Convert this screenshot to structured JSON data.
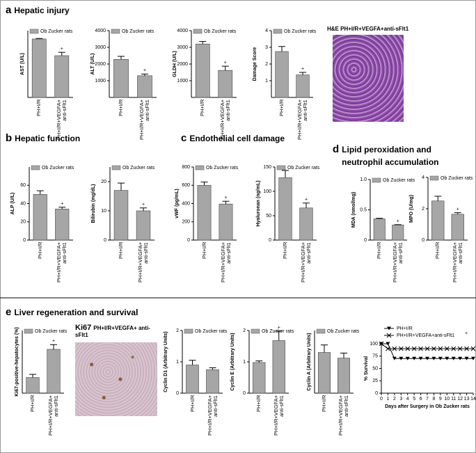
{
  "panels": [
    {
      "letter": "a",
      "title": "Hepatic injury"
    },
    {
      "letter": "b",
      "title": "Hepatic function"
    },
    {
      "letter": "c",
      "title": "Endothelial cell damage"
    },
    {
      "letter": "d",
      "title": "Lipid peroxidation and neutrophil accumulation"
    },
    {
      "letter": "e",
      "title": "Liver regeneration and survival"
    }
  ],
  "images": [
    {
      "caption": "H&E PH+I/R+VEGFA+anti-sFlt1"
    },
    {
      "label": "Ki67",
      "caption": "PH+I/R+VEGFA+ anti-sFlt1"
    }
  ],
  "chart_data": [
    {
      "type": "bar",
      "ylabel": "AST (U/L)",
      "categories": [
        "PH+I/R",
        "PH+I/R+VEGFA+ anti-sFlt1"
      ],
      "series": [
        {
          "name": "Ob Zucker rats",
          "color": "#a6a6a6",
          "values": [
            3500,
            2500
          ],
          "errors": [
            30,
            200
          ]
        }
      ],
      "value_markers": [
        null,
        "+"
      ],
      "ylim": [
        0,
        4000
      ]
    },
    {
      "type": "bar",
      "ylabel": "ALT (U/L)",
      "categories": [
        "PH+I/R",
        "PH+I/R+VEGFA+ anti-sFlt1"
      ],
      "series": [
        {
          "name": "Ob Zucker rats",
          "color": "#a6a6a6",
          "values": [
            2280,
            1300
          ],
          "errors": [
            180,
            100
          ]
        }
      ],
      "value_markers": [
        null,
        "+"
      ],
      "ylim": [
        0,
        4000
      ],
      "yticks": [
        1000,
        2000,
        3000,
        4000
      ]
    },
    {
      "type": "bar",
      "ylabel": "GLDH (U/L)",
      "categories": [
        "PH+I/R",
        "PH+I/R+VEGFA+ anti-sFlt1"
      ],
      "series": [
        {
          "name": "Ob Zucker rats",
          "color": "#a6a6a6",
          "values": [
            3200,
            1620
          ],
          "errors": [
            150,
            250
          ]
        }
      ],
      "value_markers": [
        null,
        "+"
      ],
      "ylim": [
        0,
        4000
      ],
      "yticks": [
        1000,
        2000,
        3000,
        4000
      ]
    },
    {
      "type": "bar",
      "ylabel": "Damage Score",
      "categories": [
        "PH+I/R",
        "PH+I/R+VEGFA+ anti-sFlt1"
      ],
      "series": [
        {
          "name": "Ob Zucker rats",
          "color": "#a6a6a6",
          "values": [
            2.75,
            1.35
          ],
          "errors": [
            0.3,
            0.15
          ]
        }
      ],
      "value_markers": [
        null,
        "+"
      ],
      "ylim": [
        0,
        4
      ],
      "yticks": [
        1,
        2,
        3,
        4
      ]
    },
    {
      "type": "bar",
      "ylabel": "ALP (U/L)",
      "categories": [
        "PH+I/R",
        "PH+I/R+VEGFA+ anti-sFlt1"
      ],
      "series": [
        {
          "name": "Ob Zucker rats",
          "color": "#a6a6a6",
          "values": [
            50,
            34
          ],
          "errors": [
            4,
            2
          ]
        }
      ],
      "value_markers": [
        null,
        "+"
      ],
      "ylim": [
        0,
        80
      ],
      "yticks": [
        0,
        20,
        40,
        60
      ]
    },
    {
      "type": "bar",
      "ylabel": "Bilirubin (mg/dL)",
      "categories": [
        "PH+I/R",
        "PH+I/R+VEGFA+ anti-sFlt1"
      ],
      "series": [
        {
          "name": "Ob Zucker rats",
          "color": "#a6a6a6",
          "values": [
            17,
            10
          ],
          "errors": [
            2.5,
            1
          ]
        }
      ],
      "value_markers": [
        null,
        "+"
      ],
      "ylim": [
        0,
        25
      ],
      "yticks": [
        0,
        10,
        20
      ]
    },
    {
      "type": "bar",
      "ylabel": "vWF (pg/mL)",
      "categories": [
        "PH+I/R",
        "PH+I/R+VEGFA+ anti-sFlt1"
      ],
      "series": [
        {
          "name": "Ob Zucker rats",
          "color": "#a6a6a6",
          "values": [
            600,
            395
          ],
          "errors": [
            35,
            30
          ]
        }
      ],
      "value_markers": [
        null,
        "+"
      ],
      "ylim": [
        0,
        800
      ],
      "yticks": [
        0,
        200,
        400,
        600,
        800
      ]
    },
    {
      "type": "bar",
      "ylabel": "Hyaluronan (ng/mL)",
      "categories": [
        "PH+I/R",
        "PH+I/R+VEGFA+ anti-sFlt1"
      ],
      "series": [
        {
          "name": "Ob Zucker rats",
          "color": "#a6a6a6",
          "values": [
            128,
            66
          ],
          "errors": [
            15,
            10
          ]
        }
      ],
      "value_markers": [
        null,
        "+"
      ],
      "ylim": [
        0,
        150
      ],
      "yticks": [
        0,
        50,
        100,
        150
      ]
    },
    {
      "type": "bar",
      "ylabel": "MDA (nmol/mg)",
      "categories": [
        "PH+I/R",
        "PH+I/R+VEGFA+ anti-sFlt1"
      ],
      "series": [
        {
          "name": "Ob Zucker rats",
          "color": "#a6a6a6",
          "values": [
            0.35,
            0.25
          ],
          "errors": [
            0.01,
            0.005
          ]
        }
      ],
      "value_markers": [
        null,
        "+"
      ],
      "ylim": [
        0,
        1
      ],
      "yticks": [
        0,
        0.5,
        {
          "value": 1,
          "label": "1.0"
        }
      ]
    },
    {
      "type": "bar",
      "ylabel": "MPO (U/mg)",
      "categories": [
        "PH+I/R",
        "PH+I/R+VEGFA+ anti-sFlt1"
      ],
      "series": [
        {
          "name": "Ob Zucker rats",
          "color": "#a6a6a6",
          "values": [
            2.5,
            1.65
          ],
          "errors": [
            0.3,
            0.1
          ]
        }
      ],
      "value_markers": [
        null,
        "+"
      ],
      "ylim": [
        0,
        4
      ],
      "yticks": [
        0,
        2,
        4
      ]
    },
    {
      "type": "bar",
      "ylabel": "Ki67-positive-hepatocytes (%)",
      "categories": [
        "PH+I/R",
        "PH+I/R+VEGFA+ anti-sFlt1"
      ],
      "series": [
        {
          "name": "Ob Zucker rats",
          "color": "#a6a6a6",
          "values": [
            10,
            28
          ],
          "errors": [
            2,
            3
          ]
        }
      ],
      "value_markers": [
        null,
        "+"
      ],
      "ylim": [
        0,
        40
      ]
    },
    {
      "type": "bar",
      "ylabel": "Cyclin D1 (Arbitrary Units)",
      "categories": [
        "PH+I/R",
        "PH+I/R+VEGFA+ anti-sFlt1"
      ],
      "series": [
        {
          "name": "Ob Zucker rats",
          "color": "#a6a6a6",
          "values": [
            0.9,
            0.75
          ],
          "errors": [
            0.15,
            0.06
          ]
        }
      ],
      "value_markers": [
        null,
        null
      ],
      "ylim": [
        0,
        2
      ],
      "yticks": [
        0,
        1,
        2
      ]
    },
    {
      "type": "bar",
      "ylabel": "Cyclin E (Arbitrary Units)",
      "categories": [
        "PH+I/R",
        "PH+I/R+VEGFA+ anti-sFlt1"
      ],
      "series": [
        {
          "name": "Ob Zucker rats",
          "color": "#a6a6a6",
          "values": [
            0.98,
            1.68
          ],
          "errors": [
            0.05,
            0.3
          ]
        }
      ],
      "value_markers": [
        null,
        "+"
      ],
      "ylim": [
        0,
        2
      ],
      "yticks": [
        0,
        1,
        2
      ]
    },
    {
      "type": "bar",
      "ylabel": "Cyclin A (Arbitrary Units)",
      "categories": [
        "PH+I/R",
        "PH+I/R+VEGFA+ anti-sFlt1"
      ],
      "series": [
        {
          "name": "Ob Zucker rats",
          "color": "#a6a6a6",
          "values": [
            0.65,
            0.56
          ],
          "errors": [
            0.12,
            0.08
          ]
        }
      ],
      "value_markers": [
        null,
        null
      ],
      "ylim": [
        0,
        1
      ]
    },
    {
      "type": "line",
      "ylabel": "% Survival",
      "xlabel": "Days after Surgery in Ob Zucker rats",
      "x": [
        0,
        1,
        2,
        3,
        4,
        5,
        6,
        7,
        8,
        9,
        10,
        11,
        12,
        13,
        14
      ],
      "series": [
        {
          "name": "PH+I/R",
          "color": "#000000",
          "marker": "triangle",
          "values": [
            100,
            100,
            70,
            70,
            70,
            70,
            70,
            70,
            70,
            70,
            70,
            70,
            70,
            70,
            70
          ]
        },
        {
          "name": "PH+I/R+VEGFA+anti-sFlt1",
          "color": "#000000",
          "marker": "x",
          "values": [
            100,
            90,
            90,
            90,
            90,
            90,
            90,
            90,
            90,
            90,
            90,
            90,
            90,
            90,
            90
          ]
        }
      ],
      "annotation": "+",
      "xlim": [
        0,
        14
      ],
      "xticks": [
        0,
        1,
        2,
        3,
        4,
        5,
        6,
        7,
        8,
        9,
        10,
        11,
        12,
        13,
        14
      ],
      "ylim": [
        0,
        100
      ],
      "yticks": [
        0,
        25,
        50,
        75,
        100
      ]
    }
  ]
}
